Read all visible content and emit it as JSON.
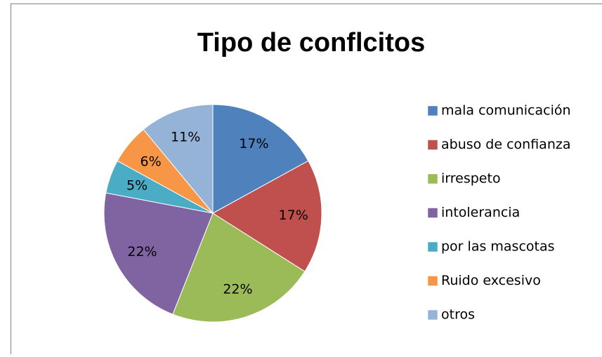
{
  "chart_data": {
    "type": "pie",
    "title": "Tipo de conflcitos",
    "categories": [
      "mala comunicación",
      "abuso de confianza",
      "irrespeto",
      "intolerancia",
      "por las mascotas",
      "Ruido excesivo",
      "otros"
    ],
    "values": [
      17,
      17,
      22,
      22,
      5,
      6,
      11
    ],
    "value_labels": [
      "17%",
      "17%",
      "22%",
      "22%",
      "5%",
      "6%",
      "11%"
    ],
    "colors": [
      "#4f81bd",
      "#c0504d",
      "#9bbb59",
      "#8064a2",
      "#4bacc6",
      "#f79646",
      "#95b3d7"
    ],
    "legend": "right"
  }
}
